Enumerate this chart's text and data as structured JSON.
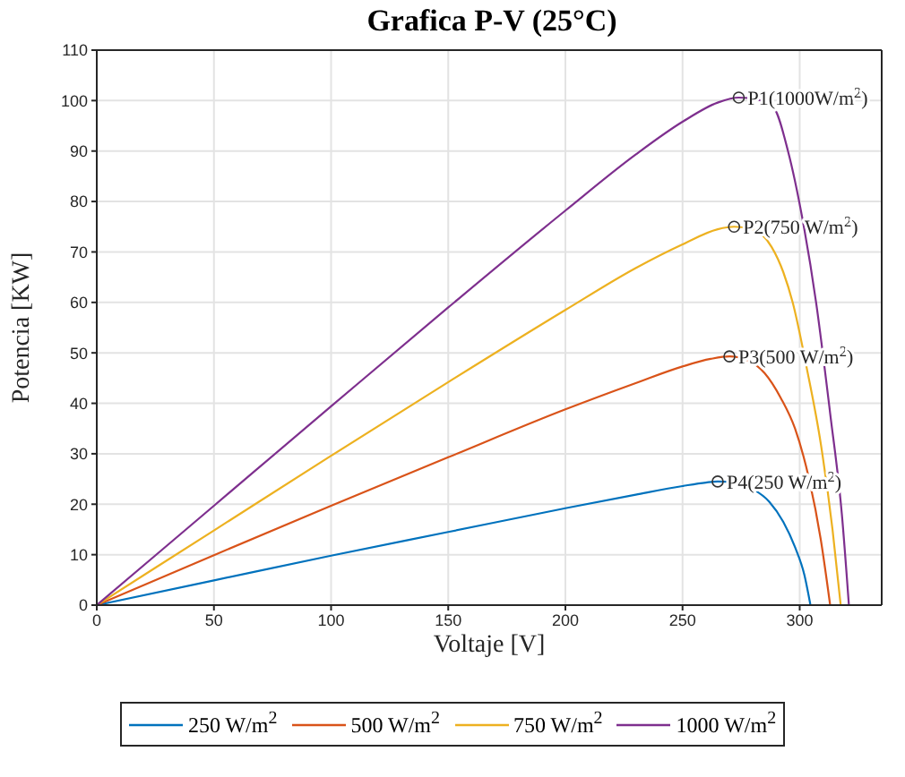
{
  "chart_data": {
    "type": "line",
    "title": "Grafica P-V (25°C)",
    "xlabel": "Voltaje [V]",
    "ylabel": "Potencia [KW]",
    "xlim": [
      0,
      335
    ],
    "xticks": [
      0,
      50,
      100,
      150,
      200,
      250,
      300
    ],
    "ylim": [
      0,
      110
    ],
    "yticks": [
      0,
      10,
      20,
      30,
      40,
      50,
      60,
      70,
      80,
      90,
      100,
      110
    ],
    "grid": true,
    "legend": "bottom",
    "marker": "none",
    "line_style": "solid",
    "series": [
      {
        "name": "250 W/m$^{2}$",
        "color": "#0072bd",
        "x": [
          0,
          50,
          100,
          150,
          200,
          230,
          250,
          260,
          265,
          272,
          280,
          287,
          293,
          298,
          302,
          304.6
        ],
        "values": [
          0,
          4.9,
          9.8,
          14.5,
          19.2,
          21.9,
          23.6,
          24.3,
          24.5,
          24.3,
          23,
          20.5,
          16.5,
          11.5,
          6,
          0
        ]
      },
      {
        "name": "500 W/m$^{2}$",
        "color": "#d95319",
        "x": [
          0,
          50,
          100,
          150,
          200,
          230,
          250,
          262,
          270,
          278,
          285,
          292,
          298,
          304,
          309,
          313
        ],
        "values": [
          0,
          9.9,
          19.7,
          29.3,
          38.8,
          44,
          47.3,
          48.8,
          49.3,
          48.5,
          46,
          41,
          35,
          25,
          13,
          0
        ]
      },
      {
        "name": "750 W/m$^{2}$",
        "color": "#edb120",
        "x": [
          0,
          50,
          100,
          150,
          200,
          230,
          250,
          265,
          272,
          280,
          288,
          293,
          297,
          303,
          309,
          314,
          317.5
        ],
        "values": [
          0,
          14.8,
          29.6,
          44.2,
          58.5,
          66.8,
          71.5,
          74.5,
          75,
          74.5,
          71,
          66,
          60,
          47,
          32,
          15,
          0
        ]
      },
      {
        "name": "1000 W/m$^{2}$",
        "color": "#7e2f8e",
        "x": [
          0,
          50,
          100,
          150,
          200,
          230,
          250,
          265,
          274,
          282,
          289,
          295,
          301,
          307,
          313,
          318,
          321
        ],
        "values": [
          0,
          19.7,
          39.4,
          59,
          78.2,
          89.3,
          95.8,
          99.6,
          100.6,
          100.2,
          98.5,
          90,
          77,
          60,
          38,
          18,
          0
        ]
      }
    ],
    "annotations": [
      {
        "text": "P1(1000W/m$^{2}$)",
        "x": 274,
        "y": 100.6
      },
      {
        "text": "P2(750 W/m$^{2}$)",
        "x": 272,
        "y": 75
      },
      {
        "text": "P3(500 W/m$^{2}$)",
        "x": 270,
        "y": 49.3
      },
      {
        "text": "P4(250 W/m$^{2}$)",
        "x": 265,
        "y": 24.5
      }
    ]
  }
}
